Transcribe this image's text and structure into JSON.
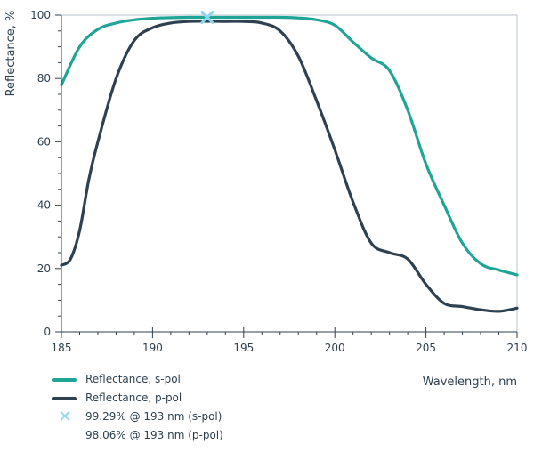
{
  "chart_data": {
    "type": "line",
    "title": "",
    "xlabel": "Wavelength, nm",
    "ylabel": "Reflectance, %",
    "xlim": [
      185,
      210
    ],
    "ylim": [
      0,
      100
    ],
    "xticks": [
      185,
      190,
      195,
      200,
      205,
      210
    ],
    "yticks": [
      0,
      20,
      40,
      60,
      80,
      100
    ],
    "grid": false,
    "legend_position": "bottom-left",
    "series": [
      {
        "name": "Reflectance, s-pol",
        "color": "#1fa596",
        "x": [
          185,
          186,
          187,
          188,
          189,
          190,
          191,
          192,
          193,
          194,
          195,
          196,
          197,
          198,
          199,
          200,
          201,
          202,
          203,
          204,
          205,
          206,
          207,
          208,
          209,
          210
        ],
        "y": [
          78,
          90,
          95.5,
          97.5,
          98.5,
          99,
          99.2,
          99.3,
          99.3,
          99.3,
          99.3,
          99.3,
          99.3,
          99.1,
          98.5,
          96.8,
          91.5,
          86.5,
          82.5,
          70,
          53,
          40,
          28,
          21.5,
          19.5,
          18
        ]
      },
      {
        "name": "Reflectance, p-pol",
        "color": "#2e4150",
        "x": [
          185,
          185.5,
          186,
          186.5,
          187,
          188,
          189,
          190,
          191,
          192,
          193,
          194,
          195,
          196,
          197,
          198,
          199,
          200,
          201,
          202,
          203,
          204,
          205,
          206,
          207,
          208,
          209,
          210
        ],
        "y": [
          21,
          23,
          32,
          48,
          60,
          80,
          92,
          96,
          97.5,
          98,
          98.06,
          98,
          98,
          97.5,
          95,
          87,
          73,
          57.5,
          41,
          28,
          25,
          23,
          15,
          9,
          8,
          7,
          6.5,
          7.5
        ]
      }
    ],
    "markers": [
      {
        "label": "99.29% @ 193 nm (s-pol)",
        "x": 193,
        "y": 99.29,
        "color": "#8fd6f2",
        "shape": "x"
      }
    ],
    "annotations": [
      "98.06% @ 193 nm (p-pol)"
    ]
  }
}
